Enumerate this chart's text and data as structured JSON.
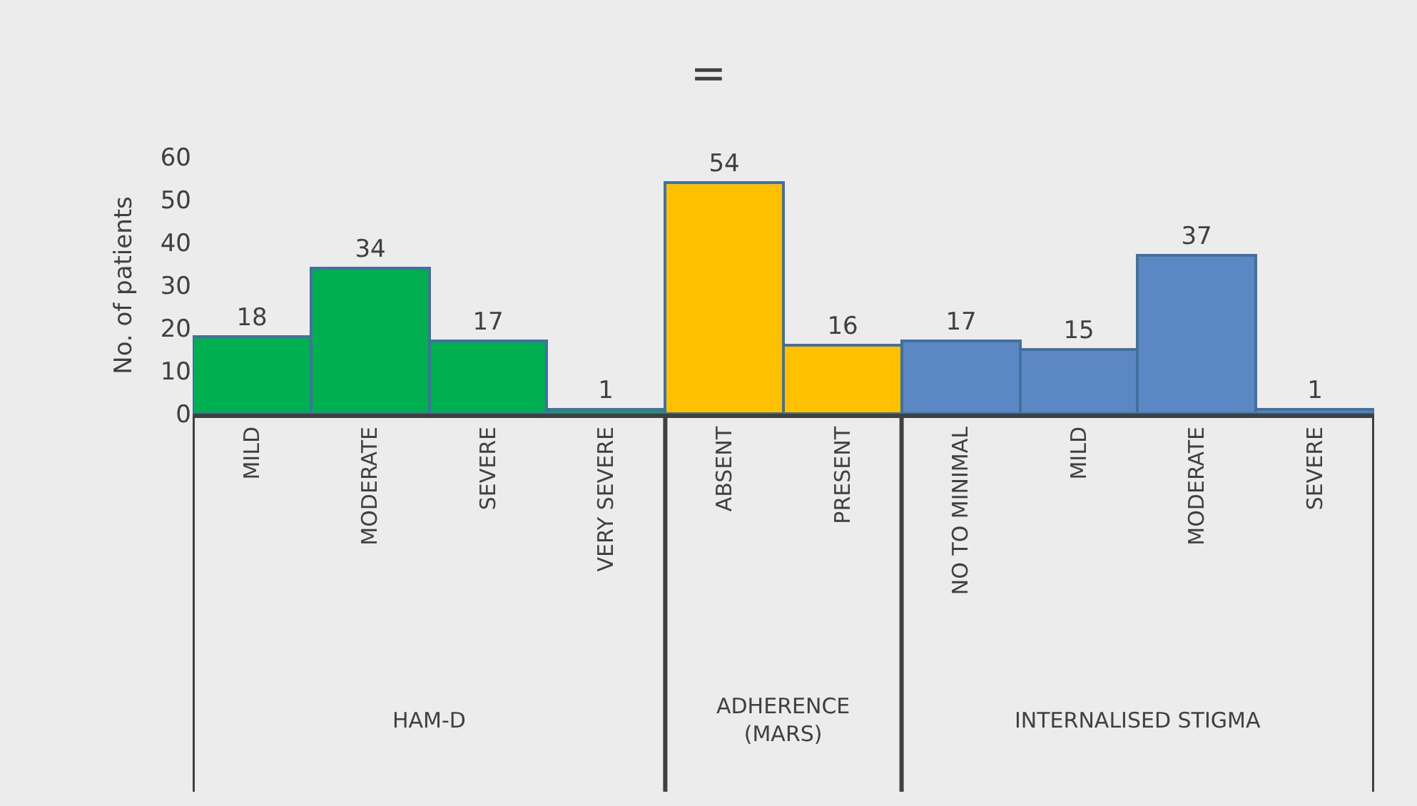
{
  "chart_data": {
    "type": "bar",
    "title": "=",
    "ylabel": "No. of patients",
    "categories": [
      "MILD",
      "MODERATE",
      "SEVERE",
      "VERY SEVERE",
      "ABSENT",
      "PRESENT",
      "NO TO MINIMAL",
      "MILD",
      "MODERATE",
      "SEVERE"
    ],
    "series": [
      {
        "color": "#00b050",
        "values": [
          18,
          34,
          17,
          1,
          null,
          null,
          null,
          null,
          null,
          null
        ]
      },
      {
        "color": "#ffc000",
        "values": [
          null,
          null,
          null,
          null,
          54,
          16,
          null,
          null,
          null,
          null
        ]
      },
      {
        "color": "#5b87c5",
        "values": [
          null,
          null,
          null,
          null,
          null,
          null,
          17,
          15,
          37,
          1
        ]
      }
    ],
    "ylim": [
      0,
      60
    ],
    "yticks": [
      0,
      10,
      20,
      30,
      40,
      50,
      60
    ],
    "grid": false,
    "data_labels": true,
    "annotations": [
      "HAM-D",
      "ADHERENCE\n(MARS)",
      "INTERNALISED STIGMA"
    ]
  }
}
